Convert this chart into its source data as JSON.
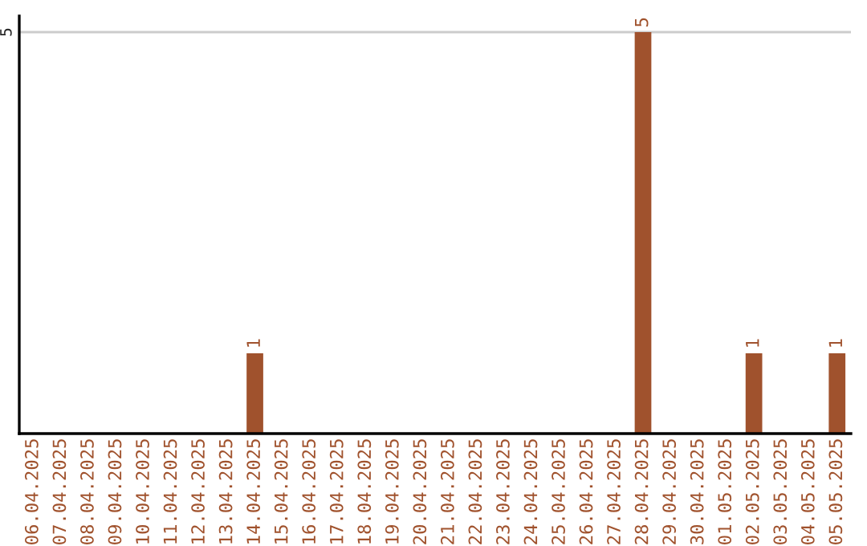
{
  "chart_data": {
    "type": "bar",
    "categories": [
      "06.04.2025",
      "07.04.2025",
      "08.04.2025",
      "09.04.2025",
      "10.04.2025",
      "11.04.2025",
      "12.04.2025",
      "13.04.2025",
      "14.04.2025",
      "15.04.2025",
      "16.04.2025",
      "17.04.2025",
      "18.04.2025",
      "19.04.2025",
      "20.04.2025",
      "21.04.2025",
      "22.04.2025",
      "23.04.2025",
      "24.04.2025",
      "25.04.2025",
      "26.04.2025",
      "27.04.2025",
      "28.04.2025",
      "29.04.2025",
      "30.04.2025",
      "01.05.2025",
      "02.05.2025",
      "03.05.2025",
      "04.05.2025",
      "05.05.2025"
    ],
    "values": [
      0,
      0,
      0,
      0,
      0,
      0,
      0,
      0,
      1,
      0,
      0,
      0,
      0,
      0,
      0,
      0,
      0,
      0,
      0,
      0,
      0,
      0,
      5,
      0,
      0,
      0,
      1,
      0,
      0,
      1
    ],
    "value_labels": [
      null,
      null,
      null,
      null,
      null,
      null,
      null,
      null,
      "1",
      null,
      null,
      null,
      null,
      null,
      null,
      null,
      null,
      null,
      null,
      null,
      null,
      null,
      "5",
      null,
      null,
      null,
      "1",
      null,
      null,
      "1"
    ],
    "color": "#a0522d",
    "ylim": [
      0,
      5.2
    ],
    "yticks": [
      5
    ],
    "grid": "y",
    "legend": false
  }
}
